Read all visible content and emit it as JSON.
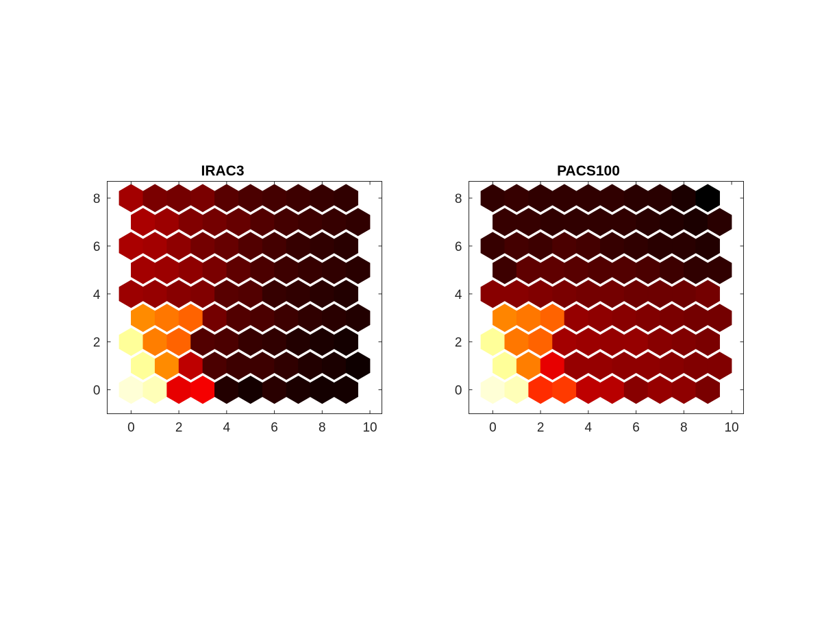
{
  "figure": {
    "background": "#ffffff",
    "colormap": "hot",
    "colormap_stops": [
      "#000000",
      "#ff0000",
      "#ffff00"
    ],
    "color_scale_range": [
      0,
      1
    ]
  },
  "chart_data": [
    {
      "type": "heatmap",
      "layout": "hexagonal self-organizing map",
      "title": "IRAC3",
      "xlabel": "",
      "ylabel": "",
      "xlim": [
        -1,
        10.5
      ],
      "ylim": [
        -1,
        8.7
      ],
      "xticks": [
        "0",
        "2",
        "4",
        "6",
        "8",
        "10"
      ],
      "yticks": [
        "0",
        "2",
        "4",
        "6",
        "8"
      ],
      "grid": false,
      "legend": "none",
      "rows": 9,
      "cols": 10,
      "values": [
        [
          0.96,
          0.93,
          0.34,
          0.36,
          0.05,
          0.03,
          0.06,
          0.04,
          0.03,
          0.03
        ],
        [
          0.9,
          0.58,
          0.28,
          0.11,
          0.09,
          0.09,
          0.07,
          0.05,
          0.04,
          0.02
        ],
        [
          0.9,
          0.56,
          0.52,
          0.12,
          0.11,
          0.08,
          0.07,
          0.05,
          0.04,
          0.03
        ],
        [
          0.58,
          0.55,
          0.52,
          0.17,
          0.12,
          0.11,
          0.09,
          0.07,
          0.06,
          0.05
        ],
        [
          0.23,
          0.22,
          0.2,
          0.19,
          0.13,
          0.12,
          0.08,
          0.07,
          0.06,
          0.05
        ],
        [
          0.24,
          0.23,
          0.21,
          0.18,
          0.14,
          0.11,
          0.09,
          0.08,
          0.07,
          0.06
        ],
        [
          0.25,
          0.24,
          0.21,
          0.17,
          0.15,
          0.12,
          0.1,
          0.08,
          0.07,
          0.06
        ],
        [
          0.25,
          0.23,
          0.19,
          0.17,
          0.15,
          0.12,
          0.1,
          0.09,
          0.08,
          0.07
        ],
        [
          0.24,
          0.18,
          0.17,
          0.18,
          0.13,
          0.11,
          0.1,
          0.09,
          0.08,
          0.07
        ]
      ]
    },
    {
      "type": "heatmap",
      "layout": "hexagonal self-organizing map",
      "title": "PACS100",
      "xlabel": "",
      "ylabel": "",
      "xlim": [
        -1,
        10.5
      ],
      "ylim": [
        -1,
        8.7
      ],
      "xticks": [
        "0",
        "2",
        "4",
        "6",
        "8",
        "10"
      ],
      "yticks": [
        "0",
        "2",
        "4",
        "6",
        "8"
      ],
      "grid": false,
      "legend": "none",
      "rows": 9,
      "cols": 10,
      "values": [
        [
          0.96,
          0.93,
          0.44,
          0.46,
          0.28,
          0.27,
          0.2,
          0.22,
          0.21,
          0.18
        ],
        [
          0.9,
          0.56,
          0.34,
          0.22,
          0.22,
          0.21,
          0.21,
          0.2,
          0.19,
          0.19
        ],
        [
          0.9,
          0.55,
          0.52,
          0.24,
          0.23,
          0.22,
          0.22,
          0.2,
          0.19,
          0.18
        ],
        [
          0.57,
          0.55,
          0.52,
          0.22,
          0.21,
          0.2,
          0.19,
          0.18,
          0.17,
          0.17
        ],
        [
          0.2,
          0.2,
          0.19,
          0.18,
          0.17,
          0.17,
          0.16,
          0.16,
          0.16,
          0.17
        ],
        [
          0.09,
          0.14,
          0.14,
          0.13,
          0.12,
          0.12,
          0.11,
          0.09,
          0.07,
          0.07
        ],
        [
          0.08,
          0.1,
          0.09,
          0.11,
          0.1,
          0.08,
          0.07,
          0.06,
          0.06,
          0.05
        ],
        [
          0.08,
          0.08,
          0.07,
          0.07,
          0.07,
          0.07,
          0.06,
          0.05,
          0.04,
          0.06
        ],
        [
          0.07,
          0.08,
          0.07,
          0.07,
          0.07,
          0.07,
          0.06,
          0.06,
          0.04,
          0.0
        ]
      ]
    }
  ]
}
